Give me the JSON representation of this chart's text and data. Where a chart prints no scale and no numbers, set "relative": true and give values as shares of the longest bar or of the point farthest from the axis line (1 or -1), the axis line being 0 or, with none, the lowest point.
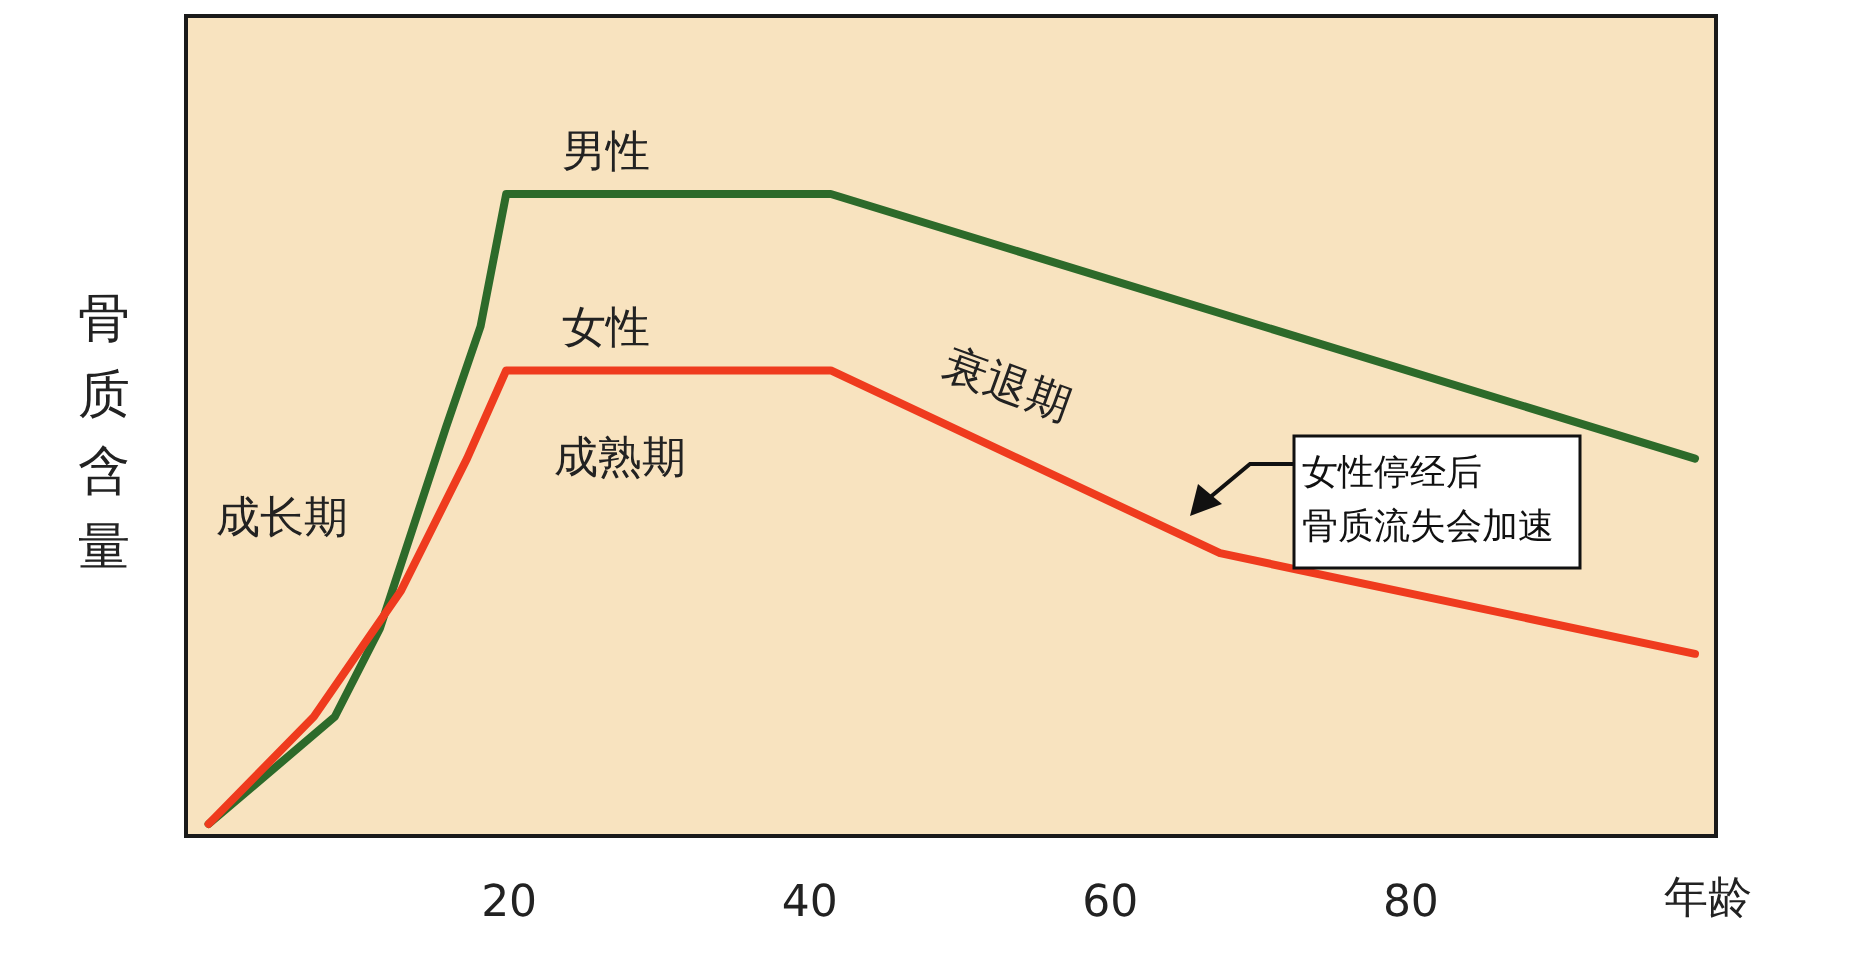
{
  "chart_data": {
    "type": "line",
    "relative": true,
    "xlabel": "年龄",
    "ylabel": "骨质含量",
    "xlim": [
      -1.5,
      100.3
    ],
    "xticks": [
      20,
      40,
      60,
      80
    ],
    "grid": false,
    "marker": "none",
    "line_style": "solid",
    "annotations": [
      "成长期",
      "成熟期",
      "衰退期",
      "女性停经后",
      "骨质流失会加速"
    ],
    "series": [
      {
        "name": "男性",
        "color": "#2d6a2a",
        "x": [
          0,
          8.4,
          11.4,
          15.8,
          18.1,
          19.8,
          41.4,
          98.9
        ],
        "values": [
          0,
          0.17,
          0.31,
          0.63,
          0.79,
          1,
          1,
          0.58
        ]
      },
      {
        "name": "女性",
        "color": "#ef3b1e",
        "x": [
          0,
          7,
          12.8,
          17.2,
          19.8,
          41.4,
          67.3,
          98.9
        ],
        "values": [
          0,
          0.17,
          0.37,
          0.58,
          0.72,
          0.72,
          0.43,
          0.27
        ]
      }
    ]
  }
}
